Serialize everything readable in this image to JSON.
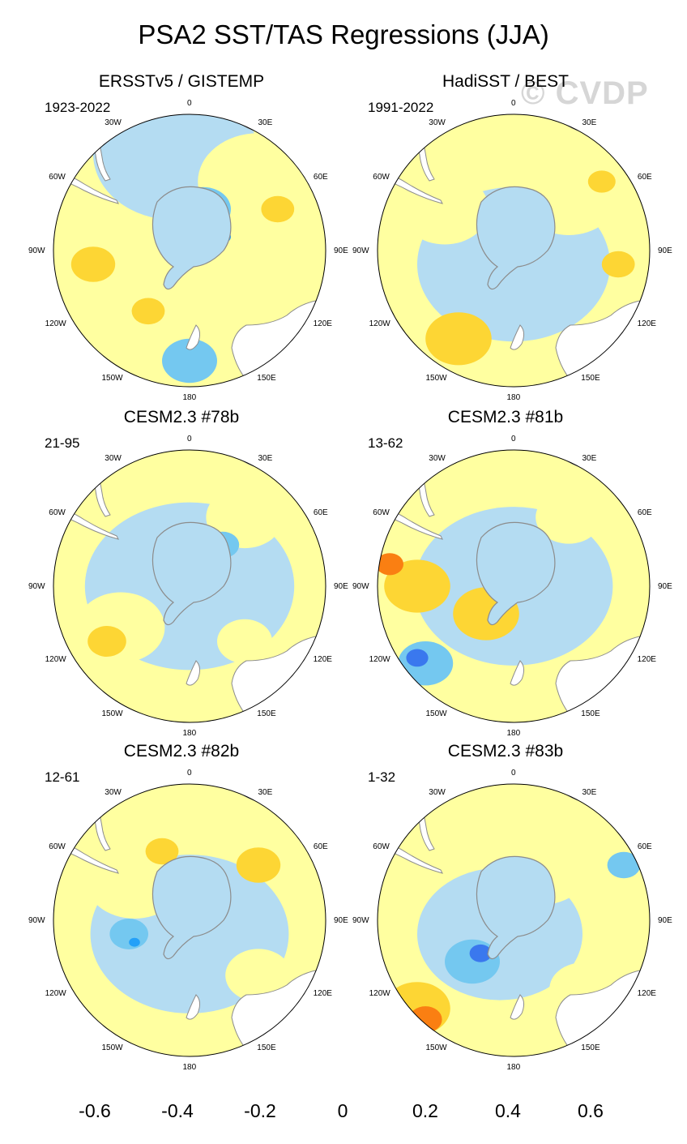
{
  "title": "PSA2 SST/TAS Regressions (JJA)",
  "watermark": "© CVDP",
  "lon_labels": {
    "n": "0",
    "e30": "30E",
    "e60": "60E",
    "e90": "90E",
    "e120": "120E",
    "e150": "150E",
    "s": "180",
    "w150": "150W",
    "w120": "120W",
    "w90": "90W",
    "w60": "60W",
    "w30": "30W"
  },
  "panels": [
    {
      "title": "ERSSTv5 / GISTEMP",
      "period": "1923-2022"
    },
    {
      "title": "HadiSST / BEST",
      "period": "1991-2022"
    },
    {
      "title": "CESM2.3 #78b",
      "period": "21-95"
    },
    {
      "title": "CESM2.3 #81b",
      "period": "13-62"
    },
    {
      "title": "CESM2.3 #82b",
      "period": "12-61"
    },
    {
      "title": "CESM2.3 #83b",
      "period": "1-32"
    }
  ],
  "colorbar": {
    "colors": [
      "#7e22f0",
      "#1a14f5",
      "#2f4fe6",
      "#3a78ee",
      "#24a0f8",
      "#00c3ff",
      "#74c8f0",
      "#b4dcf2",
      "#ffffa0",
      "#fdd634",
      "#fcac0c",
      "#fa7f12",
      "#f53a0f",
      "#e00000",
      "#c81e1e",
      "#ffb4b4"
    ],
    "labels": [
      "-0.6",
      "-0.4",
      "-0.2",
      "0",
      "0.2",
      "0.4",
      "0.6"
    ]
  },
  "colors": {
    "land": "#ffffff",
    "coast": "#8c8c8c",
    "background": "#ffffff"
  }
}
